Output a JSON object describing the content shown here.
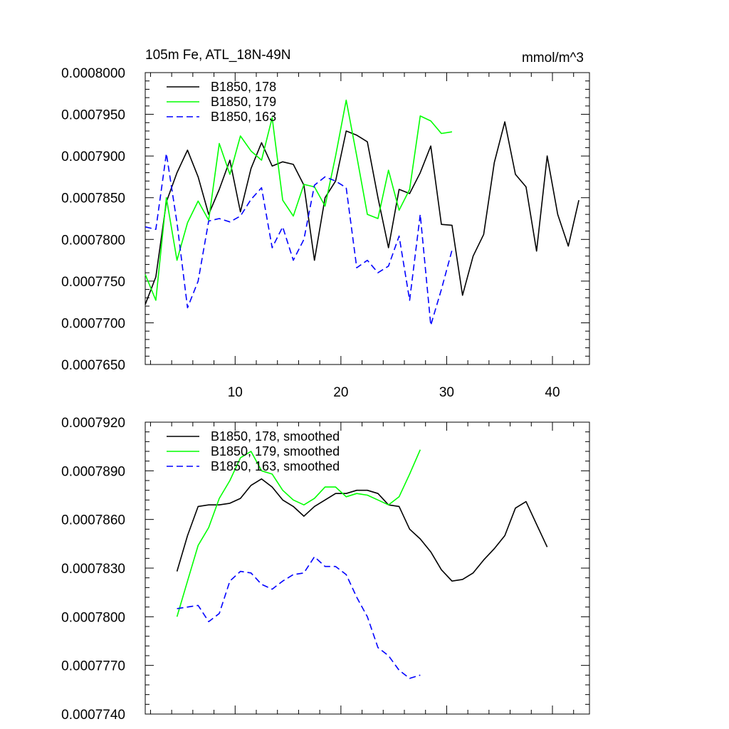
{
  "chart_data": [
    {
      "type": "line",
      "title": "105m Fe, ATL_18N-49N",
      "units": "mmol/m^3",
      "xlim": [
        1.5,
        43.5
      ],
      "ylim": [
        0.000765,
        0.0008
      ],
      "yticks": [
        0.000765,
        0.00077,
        0.000775,
        0.00078,
        0.000785,
        0.00079,
        0.000795,
        0.0008
      ],
      "ytick_labels": [
        "0.0007650",
        "0.0007700",
        "0.0007750",
        "0.0007800",
        "0.0007850",
        "0.0007900",
        "0.0007950",
        "0.0008000"
      ],
      "xticks": [
        10,
        20,
        30,
        40
      ],
      "xtick_labels": [
        "10",
        "20",
        "30",
        "40"
      ],
      "legend_position": "top-left",
      "series": [
        {
          "name": "B1850, 178",
          "color": "#000000",
          "dash": "solid",
          "x": [
            1.5,
            2.5,
            3.5,
            4.5,
            5.5,
            6.5,
            7.5,
            8.5,
            9.5,
            10.5,
            11.5,
            12.5,
            13.5,
            14.5,
            15.5,
            16.5,
            17.5,
            18.5,
            19.5,
            20.5,
            21.5,
            22.5,
            23.5,
            24.5,
            25.5,
            26.5,
            27.5,
            28.5,
            29.5,
            30.5,
            31.5,
            32.5,
            33.5,
            34.5,
            35.5,
            36.5,
            37.5,
            38.5,
            39.5,
            40.5,
            41.5,
            42.5
          ],
          "values": [
            0.0007722,
            0.0007755,
            0.0007845,
            0.000788,
            0.0007907,
            0.0007875,
            0.000783,
            0.000786,
            0.0007895,
            0.0007833,
            0.0007885,
            0.0007916,
            0.0007888,
            0.0007893,
            0.000789,
            0.0007865,
            0.0007775,
            0.000785,
            0.000787,
            0.000793,
            0.0007925,
            0.0007917,
            0.000785,
            0.000779,
            0.000786,
            0.0007855,
            0.000788,
            0.0007912,
            0.0007818,
            0.0007817,
            0.0007733,
            0.000778,
            0.0007806,
            0.0007892,
            0.0007941,
            0.0007878,
            0.0007863,
            0.0007786,
            0.00079,
            0.000783,
            0.0007792,
            0.0007847
          ]
        },
        {
          "name": "B1850, 179",
          "color": "#00ff00",
          "dash": "solid",
          "x": [
            1.5,
            2.5,
            3.5,
            4.5,
            5.5,
            6.5,
            7.5,
            8.5,
            9.5,
            10.5,
            11.5,
            12.5,
            13.5,
            14.5,
            15.5,
            16.5,
            17.5,
            18.5,
            19.5,
            20.5,
            21.5,
            22.5,
            23.5,
            24.5,
            25.5,
            26.5,
            27.5,
            28.5,
            29.5,
            30.5
          ],
          "values": [
            0.0007758,
            0.0007727,
            0.000785,
            0.0007775,
            0.000782,
            0.0007846,
            0.0007823,
            0.0007915,
            0.0007878,
            0.0007924,
            0.0007906,
            0.0007895,
            0.0007946,
            0.0007847,
            0.0007828,
            0.0007866,
            0.0007863,
            0.000784,
            0.00079,
            0.0007967,
            0.00079,
            0.000783,
            0.0007825,
            0.0007883,
            0.0007835,
            0.000786,
            0.0007948,
            0.0007942,
            0.0007927,
            0.0007929
          ]
        },
        {
          "name": "B1850, 163",
          "color": "#0000ff",
          "dash": "dashed",
          "x": [
            1.5,
            2.5,
            3.5,
            4.5,
            5.5,
            6.5,
            7.5,
            8.5,
            9.5,
            10.5,
            11.5,
            12.5,
            13.5,
            14.5,
            15.5,
            16.5,
            17.5,
            18.5,
            19.5,
            20.5,
            21.5,
            22.5,
            23.5,
            24.5,
            25.5,
            26.5,
            27.5,
            28.5,
            29.5,
            30.5
          ],
          "values": [
            0.0007815,
            0.0007812,
            0.0007903,
            0.000782,
            0.0007718,
            0.000775,
            0.0007822,
            0.0007825,
            0.0007821,
            0.0007828,
            0.0007848,
            0.0007862,
            0.000779,
            0.0007815,
            0.0007775,
            0.00078,
            0.0007865,
            0.0007875,
            0.000787,
            0.0007862,
            0.0007766,
            0.0007775,
            0.000776,
            0.0007768,
            0.0007804,
            0.0007727,
            0.000783,
            0.0007697,
            0.000774,
            0.0007787
          ]
        }
      ]
    },
    {
      "type": "line",
      "xlim": [
        1.5,
        43.5
      ],
      "ylim": [
        0.000774,
        0.000792
      ],
      "yticks": [
        0.000774,
        0.000777,
        0.00078,
        0.000783,
        0.000786,
        0.000789,
        0.000792
      ],
      "ytick_labels": [
        "0.0007740",
        "0.0007770",
        "0.0007800",
        "0.0007830",
        "0.0007860",
        "0.0007890",
        "0.0007920"
      ],
      "xticks": [
        10,
        20,
        30,
        40
      ],
      "legend_position": "top-left",
      "series": [
        {
          "name": "B1850, 178, smoothed",
          "color": "#000000",
          "dash": "solid",
          "x": [
            4.5,
            5.5,
            6.5,
            7.5,
            8.5,
            9.5,
            10.5,
            11.5,
            12.5,
            13.5,
            14.5,
            15.5,
            16.5,
            17.5,
            18.5,
            19.5,
            20.5,
            21.5,
            22.5,
            23.5,
            24.5,
            25.5,
            26.5,
            27.5,
            28.5,
            29.5,
            30.5,
            31.5,
            32.5,
            33.5,
            34.5,
            35.5,
            36.5,
            37.5,
            38.5,
            39.5
          ],
          "values": [
            0.0007828,
            0.000785,
            0.0007868,
            0.0007869,
            0.0007869,
            0.000787,
            0.0007873,
            0.0007881,
            0.0007885,
            0.000788,
            0.0007872,
            0.0007868,
            0.0007862,
            0.0007868,
            0.0007872,
            0.0007876,
            0.0007876,
            0.0007878,
            0.0007878,
            0.0007876,
            0.0007869,
            0.0007868,
            0.0007854,
            0.0007848,
            0.000784,
            0.0007829,
            0.0007822,
            0.0007823,
            0.0007827,
            0.0007835,
            0.0007842,
            0.000785,
            0.0007867,
            0.0007871,
            0.0007857,
            0.0007843
          ]
        },
        {
          "name": "B1850, 179, smoothed",
          "color": "#00ff00",
          "dash": "solid",
          "x": [
            4.5,
            5.5,
            6.5,
            7.5,
            8.5,
            9.5,
            10.5,
            11.5,
            12.5,
            13.5,
            14.5,
            15.5,
            16.5,
            17.5,
            18.5,
            19.5,
            20.5,
            21.5,
            22.5,
            23.5,
            24.5,
            25.5,
            26.5,
            27.5
          ],
          "values": [
            0.00078,
            0.0007822,
            0.0007844,
            0.0007855,
            0.0007873,
            0.0007884,
            0.0007898,
            0.0007902,
            0.000789,
            0.0007888,
            0.0007878,
            0.0007872,
            0.0007869,
            0.0007873,
            0.000788,
            0.000788,
            0.0007874,
            0.0007876,
            0.0007875,
            0.0007872,
            0.0007869,
            0.0007874,
            0.0007888,
            0.0007903
          ]
        },
        {
          "name": "B1850, 163, smoothed",
          "color": "#0000ff",
          "dash": "dashed",
          "x": [
            4.5,
            5.5,
            6.5,
            7.5,
            8.5,
            9.5,
            10.5,
            11.5,
            12.5,
            13.5,
            14.5,
            15.5,
            16.5,
            17.5,
            18.5,
            19.5,
            20.5,
            21.5,
            22.5,
            23.5,
            24.5,
            25.5,
            26.5,
            27.5
          ],
          "values": [
            0.0007805,
            0.0007806,
            0.0007807,
            0.0007797,
            0.0007802,
            0.0007822,
            0.0007828,
            0.0007827,
            0.000782,
            0.0007817,
            0.0007822,
            0.0007826,
            0.0007827,
            0.0007837,
            0.0007831,
            0.0007831,
            0.0007826,
            0.0007812,
            0.00078,
            0.0007781,
            0.0007776,
            0.0007767,
            0.0007762,
            0.0007764
          ]
        }
      ]
    }
  ]
}
